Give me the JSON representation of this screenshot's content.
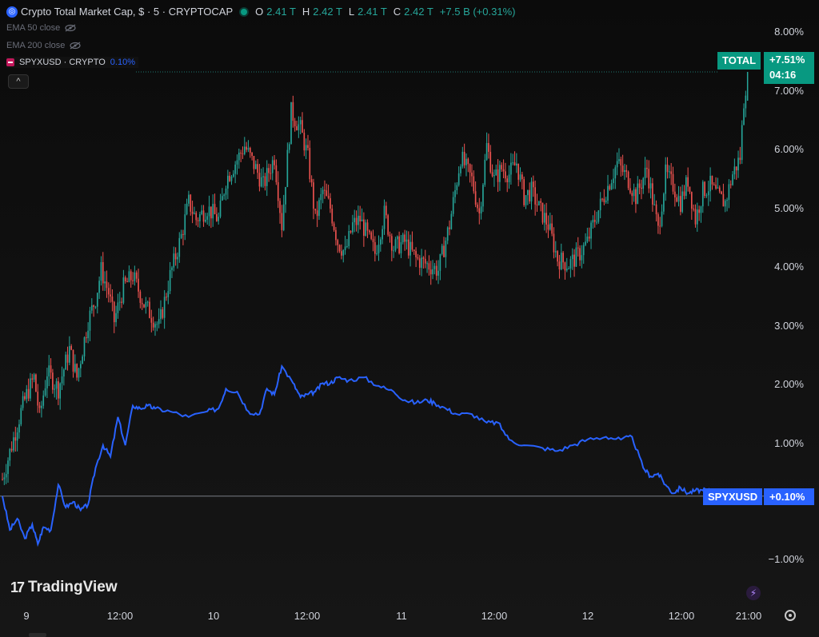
{
  "legend": {
    "symbol_title": "Crypto Total Market Cap, $ · 5 · CRYPTOCAP",
    "ohlc": [
      {
        "k": "O",
        "v": "2.41 T"
      },
      {
        "k": "H",
        "v": "2.42 T"
      },
      {
        "k": "L",
        "v": "2.41 T"
      },
      {
        "k": "C",
        "v": "2.42 T"
      }
    ],
    "change": "+7.5 B (+0.31%)",
    "indicators": [
      "EMA 50 close",
      "EMA 200 close"
    ],
    "compare_label": "SPYXUSD · CRYPTO",
    "compare_value": "0.10%",
    "collapse_glyph": "^"
  },
  "tags": {
    "total_name": "TOTAL",
    "total_value": "+7.51%",
    "total_countdown": "04:16",
    "spy_name": "SPYXUSD",
    "spy_value": "+0.10%"
  },
  "branding": {
    "logo_mark": "17",
    "logo_text": "TradingView"
  },
  "colors": {
    "up": "#26a69a",
    "down": "#ef5350",
    "compare_line": "#2962ff",
    "total_tag": "#089981",
    "baseline": "#9598a1"
  },
  "icons": [
    "crypto-symbol-icon",
    "eye-off-icon",
    "chevron-up-icon",
    "bolt-icon",
    "gear-icon"
  ],
  "chart_data": {
    "type": "line",
    "scale": "percent",
    "y_ticks": [
      "8.00%",
      "7.00%",
      "6.00%",
      "5.00%",
      "4.00%",
      "3.00%",
      "2.00%",
      "1.00%",
      "−1.00%"
    ],
    "y_tick_values": [
      8,
      7,
      6,
      5,
      4,
      3,
      2,
      1,
      -1
    ],
    "x_ticks": [
      "9",
      "12:00",
      "10",
      "12:00",
      "11",
      "12:00",
      "12",
      "12:00",
      "21:00"
    ],
    "x_tick_values": [
      0.15,
      0.65,
      1.15,
      1.65,
      2.15,
      2.65,
      3.15,
      3.65,
      4.0
    ],
    "ylim": [
      -1.9,
      8.5
    ],
    "xlim": [
      0,
      4.04
    ],
    "series": [
      {
        "name": "TOTAL",
        "style": "candles",
        "x": [
          0.0,
          0.05,
          0.1,
          0.13,
          0.17,
          0.2,
          0.24,
          0.3,
          0.36,
          0.4,
          0.46,
          0.5,
          0.53,
          0.57,
          0.6,
          0.65,
          0.7,
          0.76,
          0.8,
          0.84,
          0.9,
          0.96,
          1.0,
          1.04,
          1.1,
          1.16,
          1.2,
          1.25,
          1.3,
          1.36,
          1.4,
          1.46,
          1.5,
          1.55,
          1.6,
          1.64,
          1.68,
          1.72,
          1.76,
          1.8,
          1.84,
          1.88,
          1.92,
          1.96,
          2.0,
          2.05,
          2.1,
          2.16,
          2.22,
          2.28,
          2.34,
          2.4,
          2.46,
          2.52,
          2.56,
          2.6,
          2.64,
          2.68,
          2.72,
          2.76,
          2.8,
          2.84,
          2.88,
          2.93,
          2.98,
          3.04,
          3.1,
          3.14,
          3.18,
          3.24,
          3.3,
          3.36,
          3.4,
          3.46,
          3.52,
          3.56,
          3.6,
          3.64,
          3.68,
          3.72,
          3.76,
          3.8,
          3.84,
          3.88,
          3.92,
          3.96,
          3.98,
          4.0
        ],
        "values": [
          0.3,
          0.9,
          1.5,
          1.8,
          2.1,
          1.4,
          2.2,
          1.9,
          2.6,
          2.1,
          3.1,
          3.5,
          4.0,
          3.6,
          3.1,
          3.7,
          3.9,
          3.4,
          3.2,
          3.0,
          3.9,
          4.6,
          5.2,
          4.9,
          5.1,
          4.9,
          5.6,
          5.9,
          6.2,
          5.8,
          5.5,
          6.0,
          4.8,
          6.8,
          6.5,
          6.0,
          4.9,
          5.4,
          5.1,
          4.5,
          4.3,
          4.8,
          4.9,
          4.6,
          4.3,
          5.0,
          4.4,
          4.5,
          4.2,
          4.1,
          4.0,
          4.8,
          6.0,
          5.6,
          5.0,
          6.2,
          5.6,
          5.8,
          5.7,
          5.9,
          5.3,
          5.4,
          5.1,
          4.8,
          4.2,
          4.1,
          4.3,
          4.5,
          4.9,
          5.4,
          5.9,
          5.6,
          5.3,
          5.8,
          4.7,
          5.7,
          5.5,
          5.2,
          5.6,
          4.9,
          5.4,
          5.5,
          5.3,
          5.2,
          5.7,
          6.0,
          7.0,
          7.51
        ]
      },
      {
        "name": "SPYXUSD",
        "style": "line",
        "x": [
          0.0,
          0.04,
          0.08,
          0.12,
          0.16,
          0.19,
          0.22,
          0.26,
          0.3,
          0.34,
          0.38,
          0.42,
          0.46,
          0.5,
          0.54,
          0.58,
          0.62,
          0.66,
          0.7,
          0.74,
          0.78,
          0.82,
          0.9,
          1.0,
          1.1,
          1.16,
          1.2,
          1.26,
          1.32,
          1.38,
          1.42,
          1.46,
          1.5,
          1.56,
          1.6,
          1.64,
          1.68,
          1.72,
          1.76,
          1.8,
          1.86,
          1.94,
          2.02,
          2.1,
          2.16,
          2.22,
          2.28,
          2.32,
          2.38,
          2.44,
          2.52,
          2.6,
          2.66,
          2.72,
          2.8,
          2.9,
          2.98,
          3.06,
          3.14,
          3.24,
          3.32,
          3.38,
          3.44,
          3.48,
          3.52,
          3.56,
          3.6,
          3.64,
          3.68,
          3.72,
          3.76,
          3.8
        ],
        "values": [
          0.0,
          -0.6,
          -0.4,
          -0.75,
          -0.5,
          -0.85,
          -0.55,
          -0.6,
          0.2,
          -0.2,
          -0.1,
          -0.25,
          -0.15,
          0.5,
          0.9,
          0.7,
          1.4,
          0.9,
          1.6,
          1.55,
          1.6,
          1.55,
          1.5,
          1.4,
          1.5,
          1.55,
          1.9,
          1.85,
          1.5,
          1.45,
          1.9,
          1.8,
          2.3,
          2.0,
          1.75,
          1.8,
          1.85,
          2.0,
          2.0,
          2.1,
          2.05,
          2.1,
          1.95,
          1.85,
          1.7,
          1.65,
          1.7,
          1.65,
          1.55,
          1.45,
          1.45,
          1.3,
          1.3,
          1.0,
          0.9,
          0.85,
          0.8,
          0.9,
          1.0,
          1.05,
          1.0,
          1.05,
          0.5,
          0.35,
          0.4,
          0.2,
          0.05,
          0.15,
          0.05,
          0.1,
          0.1,
          0.1
        ]
      }
    ],
    "baseline_value": 0.0,
    "last_values": {
      "TOTAL": "+7.51%",
      "SPYXUSD": "+0.10%"
    }
  }
}
